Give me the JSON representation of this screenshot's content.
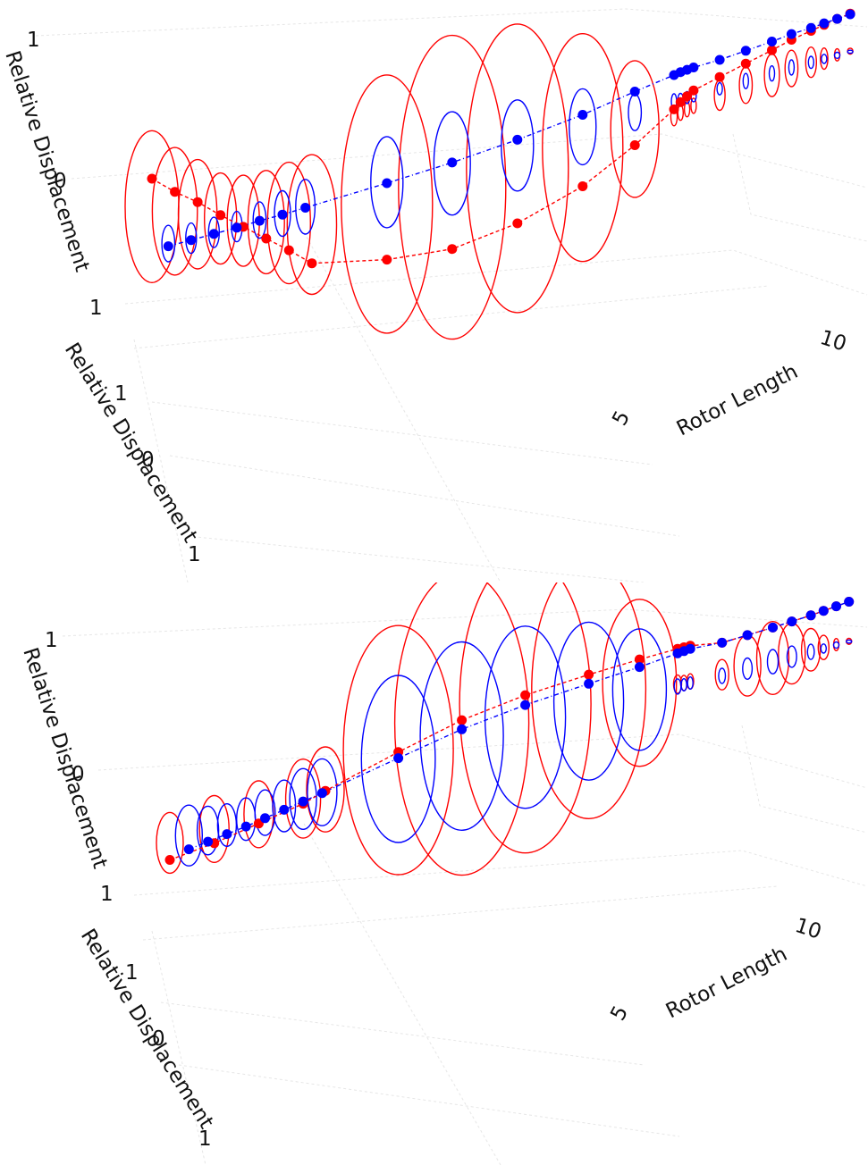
{
  "chart_data": [
    {
      "type": "scatter",
      "mode": "3d-orbit",
      "z_label": "Relative Displacement",
      "y_label": "Relative Displacement",
      "x_label": "Rotor Length",
      "z_ticks": [
        "1",
        "0",
        "1"
      ],
      "y_ticks": [
        "1",
        "0",
        "1"
      ],
      "x_ticks": [
        "5",
        "10"
      ],
      "colors": {
        "series_a": "#ff0000",
        "series_b": "#0000ff",
        "grid": "#e6e6e6"
      },
      "series": [
        {
          "name": "red",
          "color": "#ff0000",
          "rotor_length": [
            0.0,
            0.35,
            0.7,
            1.05,
            1.4,
            1.75,
            2.1,
            2.45,
            3.6,
            4.6,
            5.6,
            6.6,
            7.4,
            8.0,
            8.1,
            8.2,
            8.3,
            8.7,
            9.1,
            9.5,
            9.8,
            10.1,
            10.3,
            10.5,
            10.7
          ],
          "displacement": [
            1.0,
            0.74,
            0.52,
            0.26,
            0.02,
            -0.22,
            -0.46,
            -0.72,
            -0.92,
            -0.99,
            -0.85,
            -0.55,
            -0.15,
            0.22,
            0.3,
            0.36,
            0.42,
            0.52,
            0.62,
            0.72,
            0.8,
            0.86,
            0.9,
            0.94,
            0.97
          ],
          "orbit_radius": [
            0.5,
            0.42,
            0.36,
            0.3,
            0.3,
            0.34,
            0.4,
            0.46,
            0.85,
            1.0,
            0.95,
            0.75,
            0.45,
            0.06,
            0.05,
            0.05,
            0.05,
            0.1,
            0.12,
            0.14,
            0.12,
            0.1,
            0.07,
            0.04,
            0.02
          ]
        },
        {
          "name": "blue",
          "color": "#0000ff",
          "rotor_length": [
            0.25,
            0.6,
            0.95,
            1.3,
            1.65,
            2.0,
            2.35,
            3.6,
            4.6,
            5.6,
            6.6,
            7.4,
            8.0,
            8.1,
            8.2,
            8.3,
            8.7,
            9.1,
            9.5,
            9.8,
            10.1,
            10.3,
            10.5,
            10.7
          ],
          "displacement": [
            0.0,
            0.01,
            0.02,
            0.03,
            0.05,
            0.06,
            0.08,
            0.15,
            0.22,
            0.32,
            0.45,
            0.6,
            0.7,
            0.72,
            0.73,
            0.74,
            0.76,
            0.8,
            0.84,
            0.88,
            0.9,
            0.92,
            0.94,
            0.96
          ],
          "orbit_radius": [
            0.12,
            0.1,
            0.1,
            0.1,
            0.12,
            0.15,
            0.18,
            0.3,
            0.34,
            0.3,
            0.25,
            0.12,
            0.05,
            0.04,
            0.04,
            0.04,
            0.04,
            0.05,
            0.05,
            0.05,
            0.04,
            0.03,
            0.02,
            0.01
          ]
        }
      ]
    },
    {
      "type": "scatter",
      "mode": "3d-orbit",
      "z_label": "Relative Displacement",
      "y_label": "Relative Displacement",
      "x_label": "Rotor Length",
      "z_ticks": [
        "1",
        "0",
        "1"
      ],
      "y_ticks": [
        "1",
        "0",
        "1"
      ],
      "x_ticks": [
        "5",
        "10"
      ],
      "colors": {
        "series_a": "#ff0000",
        "series_b": "#0000ff",
        "grid": "#e6e6e6"
      },
      "series": [
        {
          "name": "red",
          "color": "#ff0000",
          "rotor_length": [
            0.0,
            0.7,
            1.4,
            2.1,
            2.45,
            3.6,
            4.6,
            5.6,
            6.6,
            7.4,
            8.0,
            8.1,
            8.2,
            8.7,
            9.1,
            9.5,
            9.8,
            10.1,
            10.3,
            10.5,
            10.7
          ],
          "displacement": [
            -0.3,
            -0.22,
            -0.1,
            0.02,
            0.12,
            0.4,
            0.62,
            0.75,
            0.82,
            0.86,
            0.88,
            0.88,
            0.88,
            0.82,
            0.84,
            0.86,
            0.88,
            0.9,
            0.92,
            0.94,
            0.96
          ],
          "orbit_radius": [
            0.2,
            0.22,
            0.22,
            0.26,
            0.28,
            0.82,
            1.0,
            0.98,
            0.85,
            0.55,
            0.06,
            0.05,
            0.05,
            0.1,
            0.2,
            0.24,
            0.2,
            0.14,
            0.08,
            0.04,
            0.02
          ]
        },
        {
          "name": "blue",
          "color": "#0000ff",
          "rotor_length": [
            0.3,
            0.6,
            0.9,
            1.2,
            1.5,
            1.8,
            2.1,
            2.4,
            3.6,
            4.6,
            5.6,
            6.6,
            7.4,
            8.0,
            8.1,
            8.2,
            8.7,
            9.1,
            9.5,
            9.8,
            10.1,
            10.3,
            10.5,
            10.7
          ],
          "displacement": [
            -0.22,
            -0.18,
            -0.14,
            -0.1,
            -0.05,
            0.0,
            0.05,
            0.1,
            0.32,
            0.5,
            0.62,
            0.7,
            0.76,
            0.82,
            0.83,
            0.84,
            0.82,
            0.84,
            0.86,
            0.88,
            0.9,
            0.92,
            0.94,
            0.96
          ],
          "orbit_radius": [
            0.2,
            0.16,
            0.14,
            0.14,
            0.15,
            0.17,
            0.2,
            0.22,
            0.55,
            0.62,
            0.6,
            0.52,
            0.4,
            0.05,
            0.04,
            0.04,
            0.05,
            0.07,
            0.08,
            0.07,
            0.05,
            0.03,
            0.02,
            0.01
          ]
        }
      ]
    }
  ]
}
